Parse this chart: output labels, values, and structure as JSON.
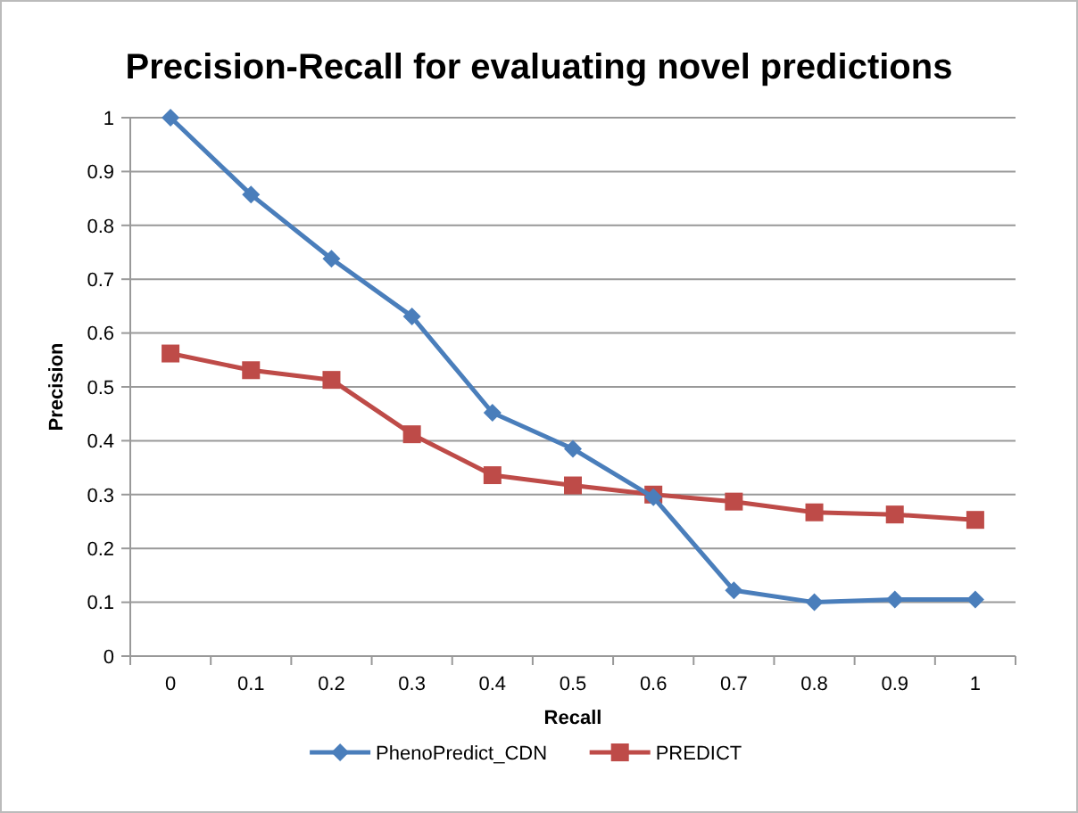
{
  "chart_data": {
    "type": "line",
    "title": "Precision-Recall for evaluating novel predictions",
    "xlabel": "Recall",
    "ylabel": "Precision",
    "categories": [
      "0",
      "0.1",
      "0.2",
      "0.3",
      "0.4",
      "0.5",
      "0.6",
      "0.7",
      "0.8",
      "0.9",
      "1"
    ],
    "series": [
      {
        "name": "PhenoPredict_CDN",
        "color": "#4a7ebb",
        "marker": "diamond",
        "values": [
          1,
          0.857,
          0.738,
          0.631,
          0.452,
          0.385,
          0.295,
          0.122,
          0.1,
          0.105,
          0.105
        ]
      },
      {
        "name": "PREDICT",
        "color": "#be4b48",
        "marker": "square",
        "values": [
          0.562,
          0.531,
          0.513,
          0.412,
          0.336,
          0.317,
          0.3,
          0.287,
          0.267,
          0.263,
          0.253
        ]
      }
    ],
    "ylim": [
      0,
      1
    ],
    "yticks": [
      0,
      0.1,
      0.2,
      0.3,
      0.4,
      0.5,
      0.6,
      0.7,
      0.8,
      0.9,
      1
    ],
    "grid": "y",
    "legend": "bottom"
  }
}
